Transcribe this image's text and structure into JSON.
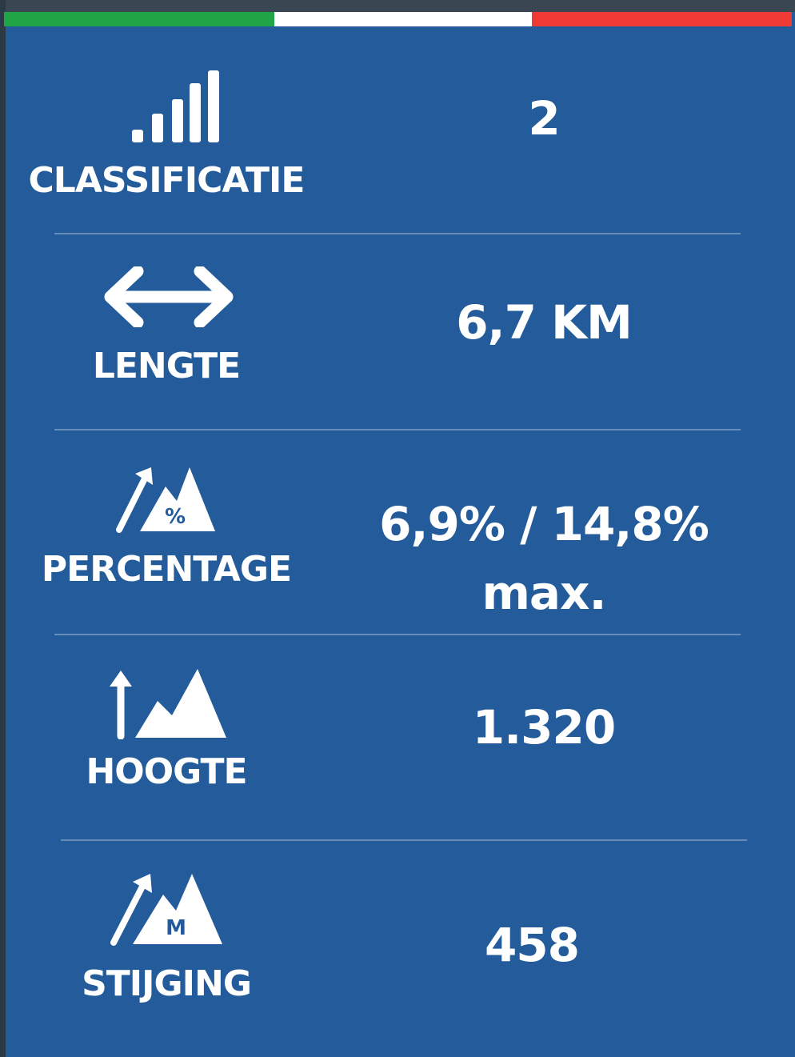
{
  "rows": [
    {
      "label": "CLASSIFICATIE",
      "value": "2"
    },
    {
      "label": "LENGTE",
      "value": "6,7 KM"
    },
    {
      "label": "PERCENTAGE",
      "value": "6,9% / 14,8% max."
    },
    {
      "label": "HOOGTE",
      "value": "1.320"
    },
    {
      "label": "STIJGING",
      "value": "458"
    }
  ]
}
